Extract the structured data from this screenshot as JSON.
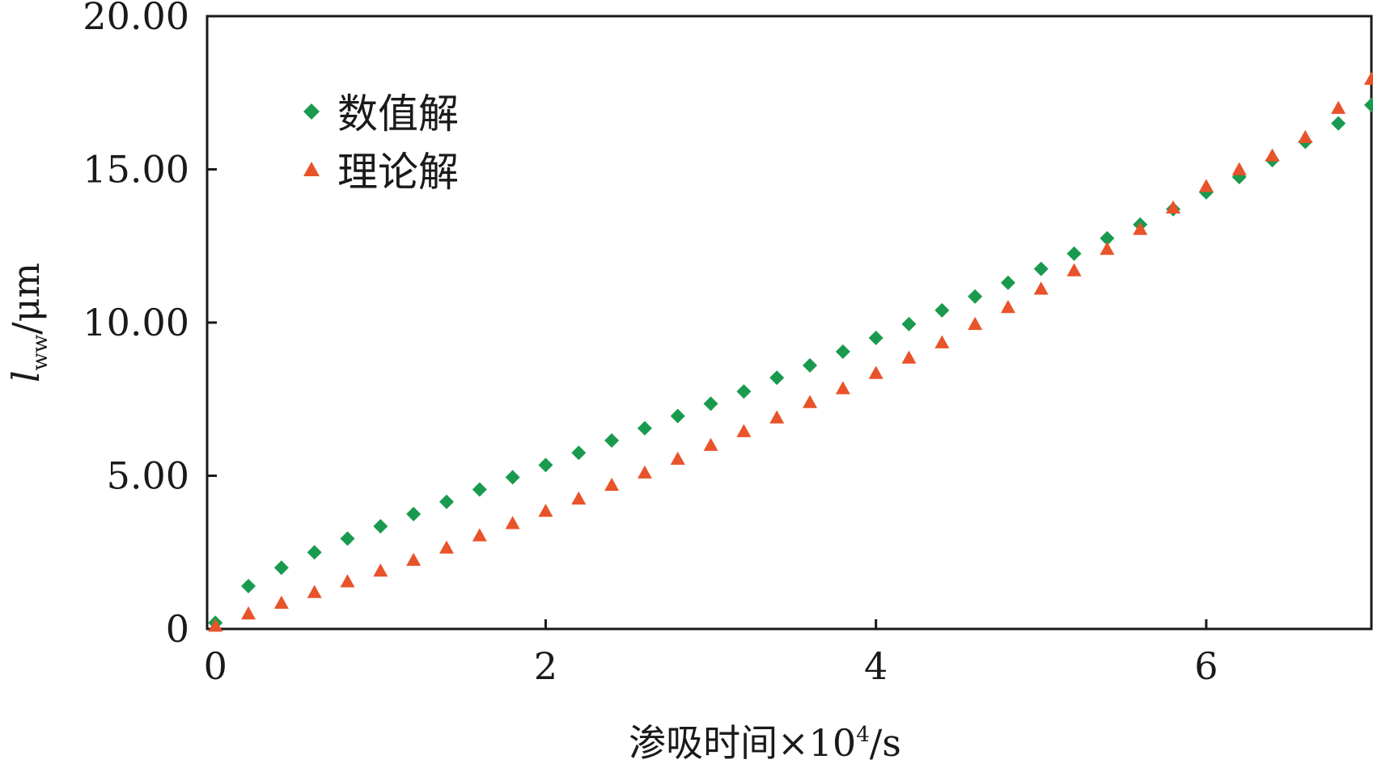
{
  "chart_data": {
    "type": "scatter",
    "xlabel_main": "渗吸时间×10",
    "xlabel_sup": "4",
    "xlabel_unit": "/s",
    "ylabel_var": "l",
    "ylabel_sub": "ww",
    "ylabel_unit": "/μm",
    "xlim": [
      -0.05,
      7.0
    ],
    "ylim": [
      0,
      20
    ],
    "xticks": [
      0,
      2,
      4,
      6
    ],
    "xtick_labels": [
      "0",
      "2",
      "4",
      "6"
    ],
    "yticks": [
      0,
      5,
      10,
      15,
      20
    ],
    "ytick_labels": [
      "0",
      "5.00",
      "10.00",
      "15.00",
      "20.00"
    ],
    "legend_position": "top-left",
    "series": [
      {
        "name": "数值解",
        "marker": "diamond",
        "color": "#1a9a4e",
        "x": [
          0,
          0.2,
          0.4,
          0.6,
          0.8,
          1.0,
          1.2,
          1.4,
          1.6,
          1.8,
          2.0,
          2.2,
          2.4,
          2.6,
          2.8,
          3.0,
          3.2,
          3.4,
          3.6,
          3.8,
          4.0,
          4.2,
          4.4,
          4.6,
          4.8,
          5.0,
          5.2,
          5.4,
          5.6,
          5.8,
          6.0,
          6.2,
          6.4,
          6.6,
          6.8,
          7.0
        ],
        "y": [
          0.2,
          1.4,
          2.0,
          2.5,
          2.95,
          3.35,
          3.75,
          4.15,
          4.55,
          4.95,
          5.35,
          5.75,
          6.15,
          6.55,
          6.95,
          7.35,
          7.75,
          8.2,
          8.6,
          9.05,
          9.5,
          9.95,
          10.4,
          10.85,
          11.3,
          11.75,
          12.25,
          12.75,
          13.2,
          13.7,
          14.25,
          14.75,
          15.3,
          15.9,
          16.5,
          17.1
        ]
      },
      {
        "name": "理论解",
        "marker": "triangle",
        "color": "#e8532a",
        "x": [
          0,
          0.2,
          0.4,
          0.6,
          0.8,
          1.0,
          1.2,
          1.4,
          1.6,
          1.8,
          2.0,
          2.2,
          2.4,
          2.6,
          2.8,
          3.0,
          3.2,
          3.4,
          3.6,
          3.8,
          4.0,
          4.2,
          4.4,
          4.6,
          4.8,
          5.0,
          5.2,
          5.4,
          5.6,
          5.8,
          6.0,
          6.2,
          6.4,
          6.6,
          6.8,
          7.0
        ],
        "y": [
          0.1,
          0.5,
          0.85,
          1.2,
          1.55,
          1.9,
          2.25,
          2.65,
          3.05,
          3.45,
          3.85,
          4.25,
          4.7,
          5.1,
          5.55,
          6.0,
          6.45,
          6.9,
          7.4,
          7.85,
          8.35,
          8.85,
          9.35,
          9.95,
          10.5,
          11.1,
          11.7,
          12.4,
          13.05,
          13.75,
          14.45,
          15.0,
          15.45,
          16.05,
          17.0,
          17.95
        ]
      }
    ]
  }
}
